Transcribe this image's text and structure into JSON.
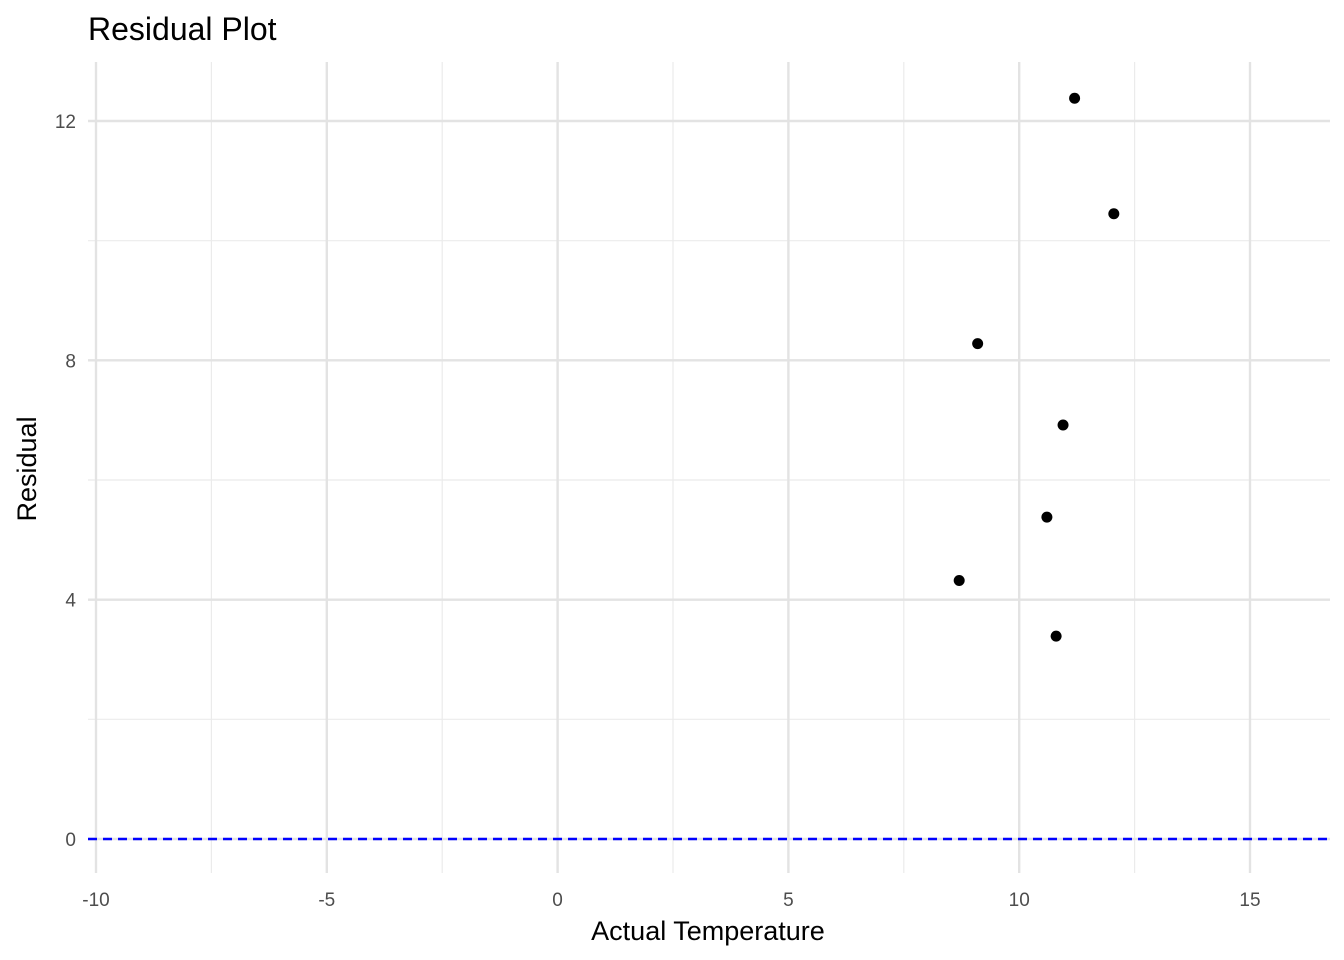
{
  "chart_data": {
    "type": "scatter",
    "title": "Residual Plot",
    "xlabel": "Actual Temperature",
    "ylabel": "Residual",
    "xlim": [
      -10,
      16.5
    ],
    "ylim": [
      -1.2,
      13
    ],
    "x_ticks": [
      -10,
      -5,
      0,
      5,
      10,
      15
    ],
    "x_tick_labels": [
      "-10",
      "-5",
      "0",
      "5",
      "10",
      "15"
    ],
    "y_ticks": [
      0,
      4,
      8,
      12
    ],
    "y_tick_labels": [
      "0",
      "4",
      "8",
      "12"
    ],
    "x_minor_ticks": [
      -7.5,
      -2.5,
      2.5,
      7.5,
      12.5
    ],
    "y_minor_ticks": [
      2,
      6,
      10
    ],
    "grid": true,
    "points": [
      {
        "x": 11.2,
        "y": 12.38
      },
      {
        "x": 12.05,
        "y": 10.45
      },
      {
        "x": 9.1,
        "y": 8.28
      },
      {
        "x": 10.95,
        "y": 6.92
      },
      {
        "x": 10.6,
        "y": 5.38
      },
      {
        "x": 8.7,
        "y": 4.32
      },
      {
        "x": 10.8,
        "y": 3.39
      }
    ],
    "point_color": "#000000",
    "reference_line": {
      "y": 0,
      "color": "#0000ff",
      "style": "dashed"
    }
  }
}
